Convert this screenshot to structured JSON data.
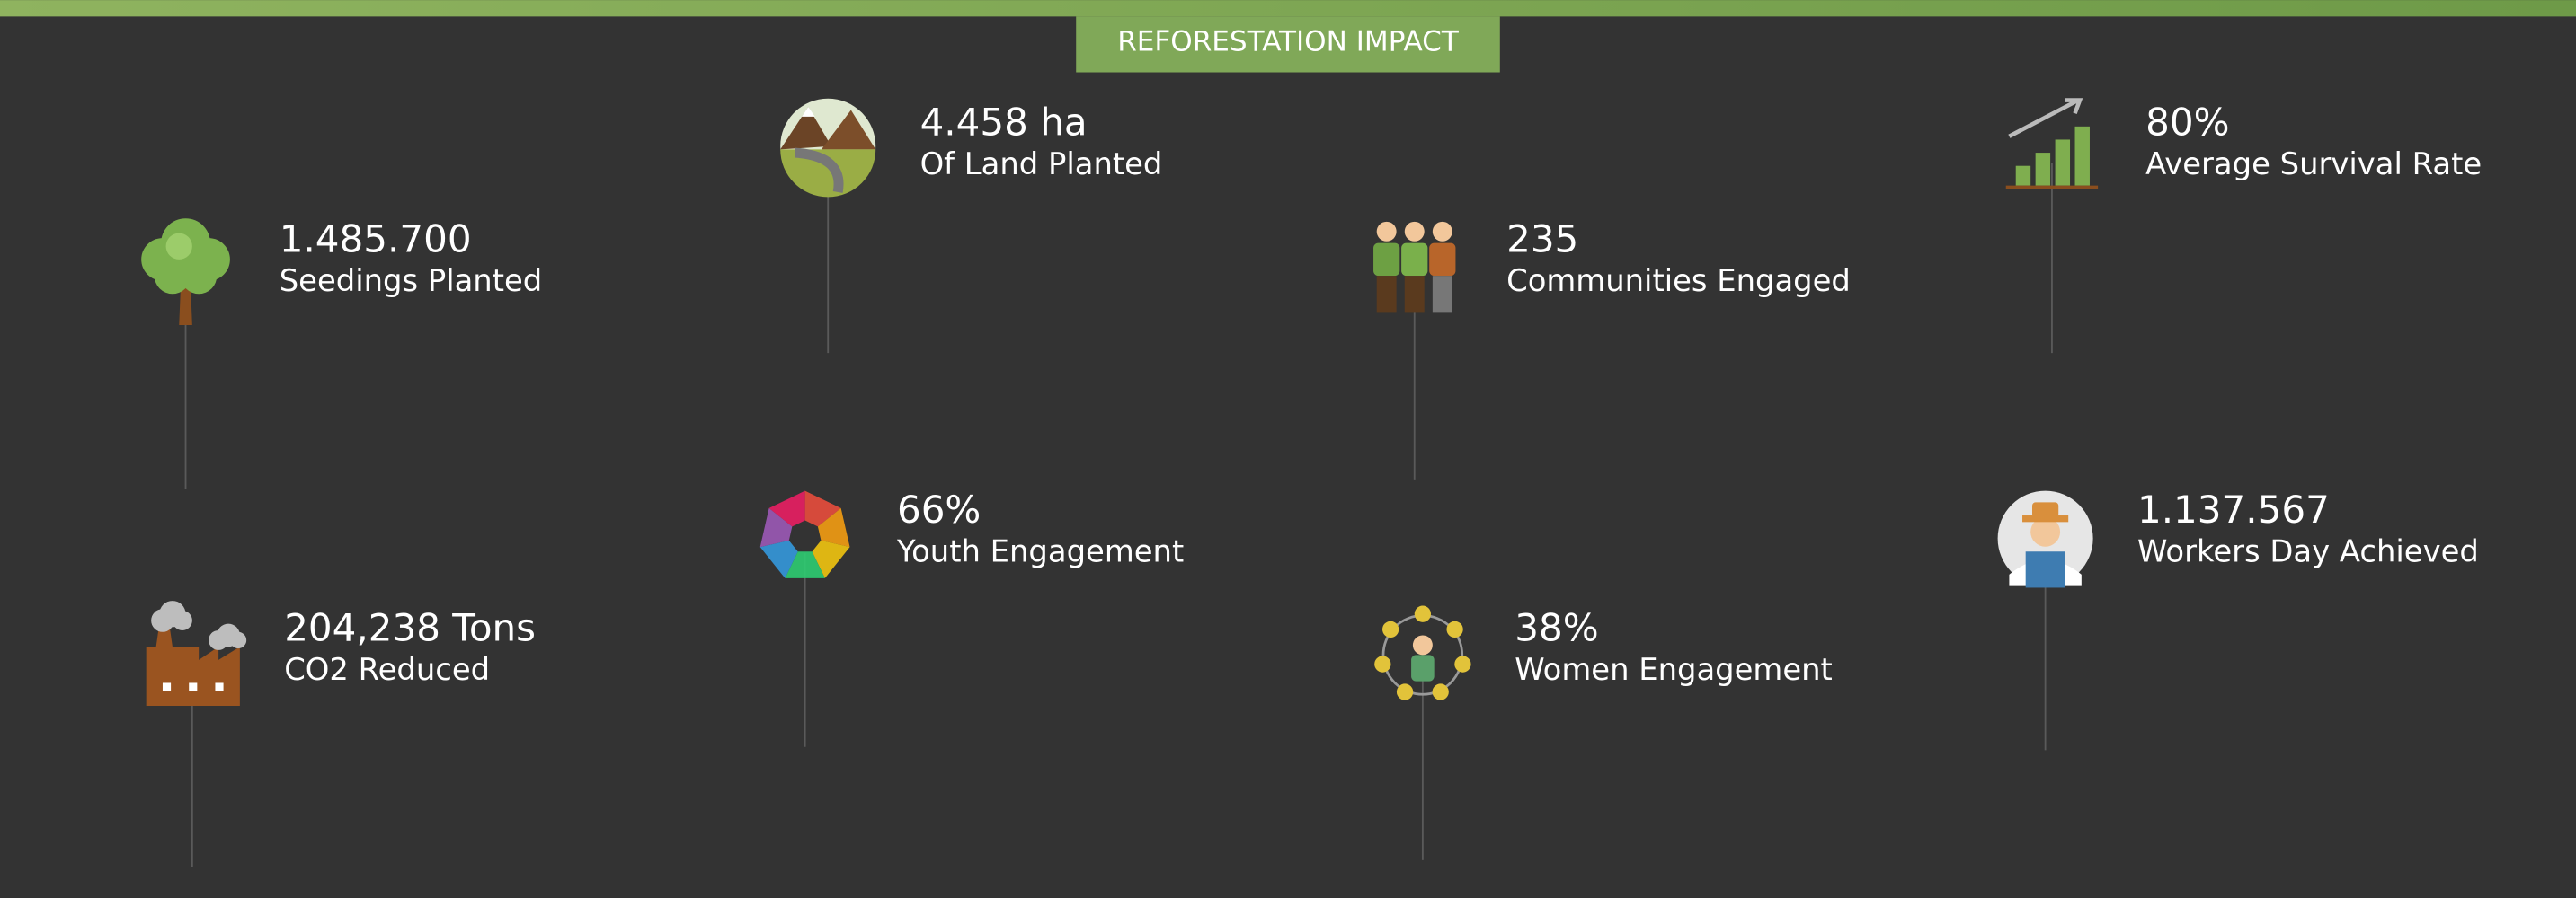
{
  "header": {
    "title": "REFORESTATION IMPACT"
  },
  "items": [
    {
      "value": "1.485.700",
      "label": "Seedings Planted"
    },
    {
      "value": "4.458 ha",
      "label": "Of Land Planted"
    },
    {
      "value": "235",
      "label": "Communities Engaged"
    },
    {
      "value": "80%",
      "label": "Average Survival Rate"
    },
    {
      "value": "204,238 Tons",
      "label": "CO2 Reduced"
    },
    {
      "value": "66%",
      "label": "Youth Engagement"
    },
    {
      "value": "38%",
      "label": "Women Engagement"
    },
    {
      "value": "1.137.567",
      "label": "Workers Day Achieved"
    }
  ]
}
